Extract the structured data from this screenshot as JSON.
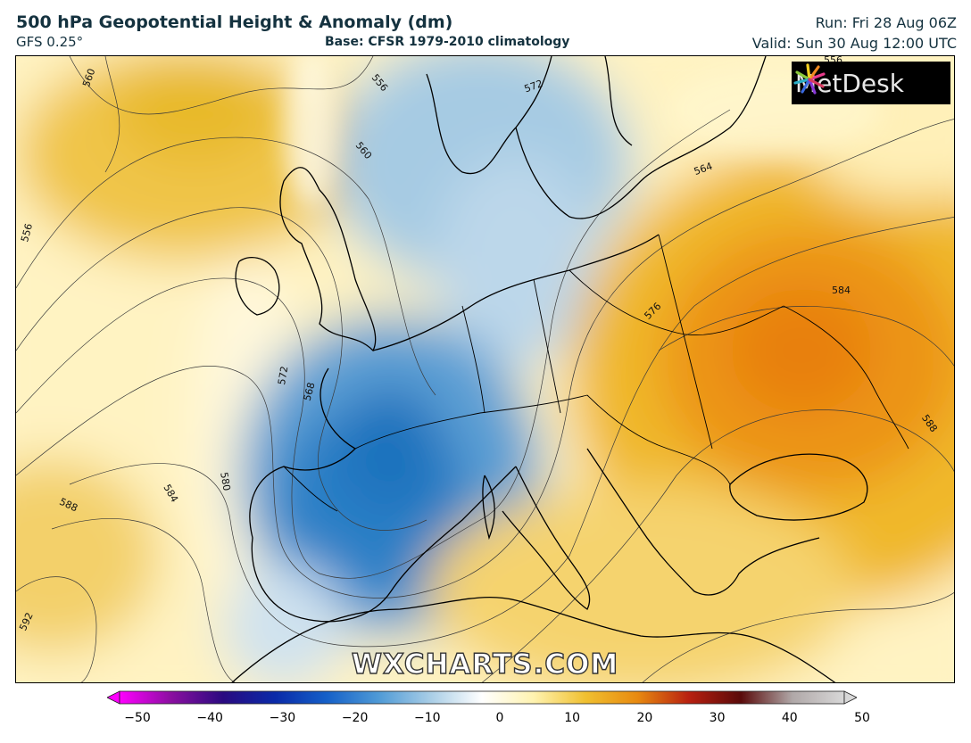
{
  "header": {
    "title": "500 hPa Geopotential Height & Anomaly (dm)",
    "model": "GFS 0.25°",
    "base": "Base: CFSR 1979-2010 climatology",
    "run": "Run: Fri 28 Aug 06Z",
    "valid": "Valid: Sun 30 Aug 12:00 UTC"
  },
  "logo": {
    "text": "MetDesk",
    "icon": "metdesk-starburst-icon"
  },
  "watermark": "WXCHARTS.COM",
  "contour_labels": [
    "556",
    "556",
    "556",
    "560",
    "560",
    "564",
    "568",
    "572",
    "572",
    "576",
    "580",
    "584",
    "584",
    "588",
    "588",
    "592"
  ],
  "colorbar": {
    "ticks": [
      "−50",
      "−40",
      "−30",
      "−20",
      "−10",
      "0",
      "10",
      "20",
      "30",
      "40",
      "50"
    ],
    "min": -50,
    "max": 50,
    "colors": [
      "#ff00ff",
      "#8a0fa0",
      "#2a0a80",
      "#0a2aa8",
      "#1560c8",
      "#4f9ad6",
      "#a8cde6",
      "#ffffff",
      "#fff3b0",
      "#f0c030",
      "#e88a10",
      "#b82010",
      "#5a0a0a",
      "#b0a8a8",
      "#d8d8d8"
    ]
  }
}
